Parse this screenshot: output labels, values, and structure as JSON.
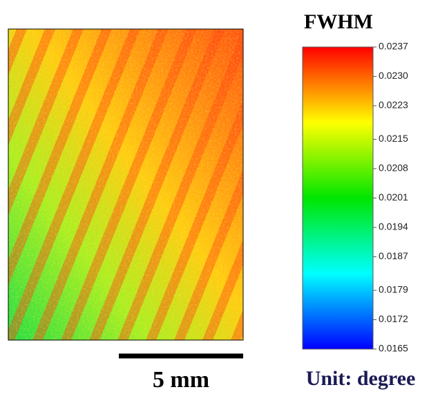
{
  "chart_data": {
    "type": "colormap",
    "title": "FWHM",
    "colorbar_colors": [
      "#0000ff",
      "#00ffff",
      "#00e600",
      "#ffff00",
      "#ff0000"
    ],
    "ylim": [
      0.0165,
      0.0237
    ],
    "yticks": [
      0.0165,
      0.0172,
      0.0179,
      0.0187,
      0.0194,
      0.0201,
      0.0208,
      0.0215,
      0.0223,
      {
        "value": 0.023,
        "label": "0.0230"
      },
      0.0237
    ],
    "scale_bar": "5 mm",
    "unit": "Unit: degree"
  }
}
